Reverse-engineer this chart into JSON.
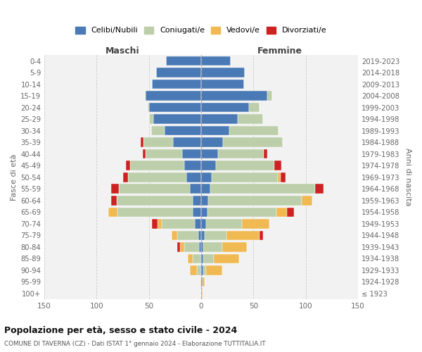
{
  "age_groups": [
    "0-4",
    "5-9",
    "10-14",
    "15-19",
    "20-24",
    "25-29",
    "30-34",
    "35-39",
    "40-44",
    "45-49",
    "50-54",
    "55-59",
    "60-64",
    "65-69",
    "70-74",
    "75-79",
    "80-84",
    "85-89",
    "90-94",
    "95-99",
    "100+"
  ],
  "birth_years": [
    "2019-2023",
    "2014-2018",
    "2009-2013",
    "2004-2008",
    "1999-2003",
    "1994-1998",
    "1989-1993",
    "1984-1988",
    "1979-1983",
    "1974-1978",
    "1969-1973",
    "1964-1968",
    "1959-1963",
    "1954-1958",
    "1949-1953",
    "1944-1948",
    "1939-1943",
    "1934-1938",
    "1929-1933",
    "1924-1928",
    "≤ 1923"
  ],
  "colors": {
    "celibi": "#4a7ab5",
    "coniugati": "#bccfaa",
    "vedovi": "#f0b952",
    "divorziati": "#cc2222"
  },
  "males": {
    "celibi": [
      34,
      43,
      47,
      53,
      50,
      46,
      35,
      27,
      18,
      16,
      14,
      11,
      8,
      8,
      6,
      3,
      2,
      1,
      1,
      0,
      0
    ],
    "coniugati": [
      0,
      0,
      0,
      1,
      1,
      4,
      13,
      28,
      35,
      52,
      56,
      68,
      73,
      72,
      32,
      20,
      14,
      7,
      3,
      0,
      0
    ],
    "vedovi": [
      0,
      0,
      0,
      0,
      0,
      0,
      0,
      0,
      0,
      0,
      0,
      0,
      0,
      9,
      4,
      5,
      4,
      5,
      7,
      1,
      0
    ],
    "divorziati": [
      0,
      0,
      0,
      0,
      0,
      0,
      0,
      3,
      3,
      4,
      5,
      7,
      5,
      0,
      5,
      0,
      3,
      0,
      0,
      0,
      0
    ]
  },
  "females": {
    "celibi": [
      28,
      42,
      41,
      63,
      46,
      35,
      27,
      21,
      16,
      14,
      10,
      9,
      7,
      6,
      5,
      3,
      2,
      2,
      2,
      1,
      0
    ],
    "coniugati": [
      0,
      0,
      0,
      5,
      10,
      24,
      47,
      57,
      44,
      56,
      63,
      100,
      89,
      66,
      34,
      21,
      18,
      10,
      3,
      0,
      0
    ],
    "vedovi": [
      0,
      0,
      0,
      0,
      0,
      0,
      0,
      0,
      0,
      0,
      3,
      0,
      10,
      10,
      26,
      32,
      24,
      24,
      15,
      2,
      1
    ],
    "divorziati": [
      0,
      0,
      0,
      0,
      0,
      0,
      0,
      0,
      3,
      7,
      5,
      8,
      0,
      7,
      0,
      3,
      0,
      0,
      0,
      0,
      0
    ]
  },
  "xlim": 150,
  "title": "Popolazione per età, sesso e stato civile - 2024",
  "subtitle": "COMUNE DI TAVERNA (CZ) - Dati ISTAT 1° gennaio 2024 - Elaborazione TUTTITALIA.IT",
  "legend_labels": [
    "Celibi/Nubili",
    "Coniugati/e",
    "Vedovi/e",
    "Divorziati/e"
  ],
  "xlabel_left": "Maschi",
  "xlabel_right": "Femmine",
  "ylabel_left": "Fasce di età",
  "ylabel_right": "Anni di nascita",
  "background_color": "#f2f2f2",
  "plot_background": "#ffffff"
}
